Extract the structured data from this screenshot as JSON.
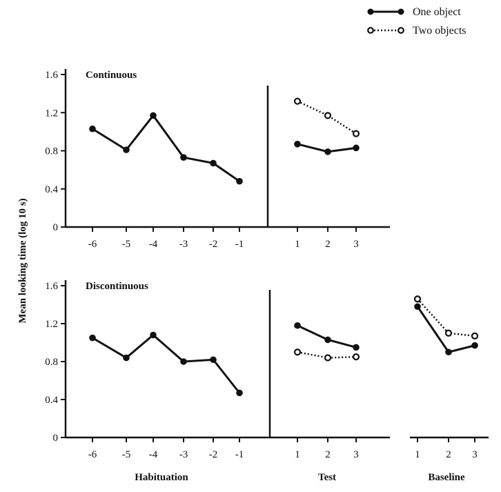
{
  "legend": {
    "one": "One object",
    "two": "Two objects"
  },
  "ylabel": "Mean looking time (log 10 s)",
  "xlabels": {
    "habituation": "Habituation",
    "test": "Test",
    "baseline": "Baseline"
  },
  "chart_data": {
    "type": "line",
    "yticks": [
      0,
      0.4,
      0.8,
      1.2,
      1.6
    ],
    "ytick_labels": [
      "0",
      "0.4",
      "0.8",
      "1.2",
      "1.6"
    ],
    "ylim": [
      0,
      1.7
    ],
    "legend_position": "top-right",
    "grid": false,
    "panels": [
      {
        "label": "Continuous",
        "habituation": {
          "x": [
            "-6",
            "-5",
            "-4",
            "-3",
            "-2",
            "-1"
          ],
          "values": [
            1.03,
            0.81,
            1.17,
            0.73,
            0.67,
            0.48
          ]
        },
        "test": {
          "x": [
            "1",
            "2",
            "3"
          ],
          "series": [
            {
              "name": "One object",
              "values": [
                0.87,
                0.79,
                0.83
              ]
            },
            {
              "name": "Two objects",
              "values": [
                1.32,
                1.17,
                0.98
              ]
            }
          ]
        }
      },
      {
        "label": "Discontinuous",
        "habituation": {
          "x": [
            "-6",
            "-5",
            "-4",
            "-3",
            "-2",
            "-1"
          ],
          "values": [
            1.05,
            0.84,
            1.08,
            0.8,
            0.82,
            0.47
          ]
        },
        "test": {
          "x": [
            "1",
            "2",
            "3"
          ],
          "series": [
            {
              "name": "One object",
              "values": [
                1.18,
                1.03,
                0.95
              ]
            },
            {
              "name": "Two objects",
              "values": [
                0.9,
                0.84,
                0.85
              ]
            }
          ]
        },
        "baseline": {
          "x": [
            "1",
            "2",
            "3"
          ],
          "series": [
            {
              "name": "One object",
              "values": [
                1.38,
                0.9,
                0.97
              ]
            },
            {
              "name": "Two objects",
              "values": [
                1.46,
                1.1,
                1.07
              ]
            }
          ]
        }
      }
    ]
  }
}
